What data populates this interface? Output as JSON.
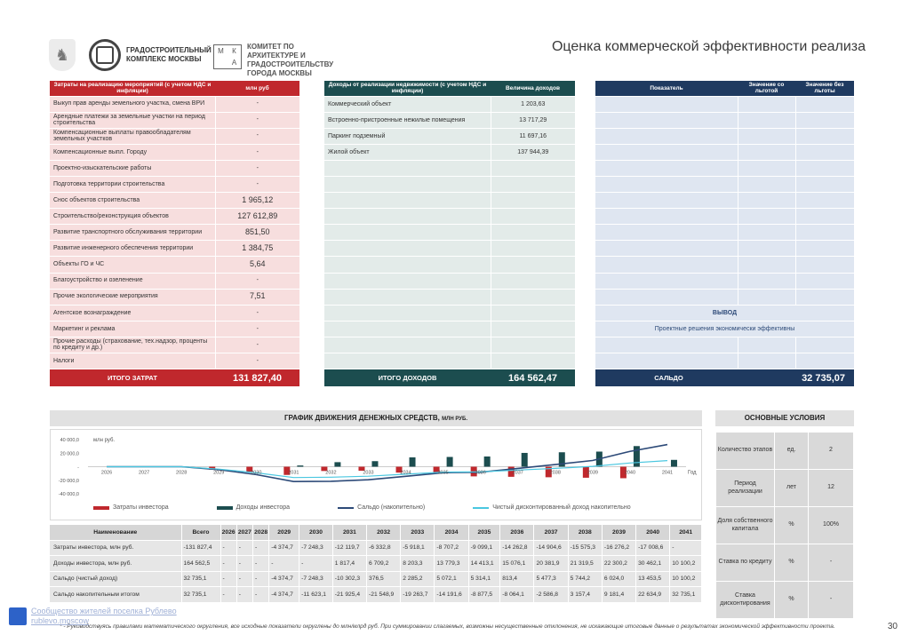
{
  "header": {
    "org1": "ГРАДОСТРОИТЕЛЬНЫЙ КОМПЛЕКС МОСКВЫ",
    "mka": [
      "М",
      "К",
      "",
      "А"
    ],
    "org2": "КОМИТЕТ ПО АРХИТЕКТУРЕ И ГРАДОСТРОИТЕЛЬСТВУ ГОРОДА МОСКВЫ",
    "title": "Оценка коммерческой эффективности реализа"
  },
  "costs": {
    "col1": "Затраты на реализацию мероприятий (с учетом НДС и инфляции)",
    "col2": "млн руб",
    "rows": [
      {
        "label": "Выкуп прав аренды земельного участка, смена ВРИ",
        "value": "-"
      },
      {
        "label": "Арендные платежи за земельные участки на период строительства",
        "value": "-"
      },
      {
        "label": "Компенсационные выплаты правообладателям земельных участков",
        "value": "-"
      },
      {
        "label": "Компенсационные выпл. Городу",
        "value": "-"
      },
      {
        "label": "Проектно-изыскательские работы",
        "value": "-"
      },
      {
        "label": "Подготовка территории строительства",
        "value": "-"
      },
      {
        "label": "Снос объектов строительства",
        "value": "1 965,12"
      },
      {
        "label": "Строительство/реконструкция объектов",
        "value": "127 612,89"
      },
      {
        "label": "Развитие транспортного обслуживания территории",
        "value": "851,50"
      },
      {
        "label": "Развитие инженерного обеспечения территории",
        "value": "1 384,75"
      },
      {
        "label": "Объекты ГО и ЧС",
        "value": "5,64"
      },
      {
        "label": "Благоустройство и озеленение",
        "value": "-"
      },
      {
        "label": "Прочие экологические мероприятия",
        "value": "7,51"
      },
      {
        "label": "Агентское вознаграждение",
        "value": "-"
      },
      {
        "label": "Маркетинг и реклама",
        "value": "-"
      },
      {
        "label": "Прочие расходы (страхование, тех.надзор, проценты по кредиту и др.)",
        "value": "-"
      },
      {
        "label": "Налоги",
        "value": "-"
      }
    ],
    "total_label": "ИТОГО ЗАТРАТ",
    "total_value": "131 827,40"
  },
  "income": {
    "col1": "Доходы от реализации недвижимости (с учетом НДС и инфляции)",
    "col2": "Величина доходов",
    "rows": [
      {
        "label": "Коммерческий объект",
        "value": "1 203,63"
      },
      {
        "label": "Встроенно-пристроенные нежилые помещения",
        "value": "13 717,29"
      },
      {
        "label": "Паркинг подземный",
        "value": "11 697,16"
      },
      {
        "label": "Жилой объект",
        "value": "137 944,39"
      },
      {
        "label": "",
        "value": ""
      },
      {
        "label": "",
        "value": ""
      },
      {
        "label": "",
        "value": ""
      },
      {
        "label": "",
        "value": ""
      },
      {
        "label": "",
        "value": ""
      },
      {
        "label": "",
        "value": ""
      },
      {
        "label": "",
        "value": ""
      },
      {
        "label": "",
        "value": ""
      },
      {
        "label": "",
        "value": ""
      },
      {
        "label": "",
        "value": ""
      },
      {
        "label": "",
        "value": ""
      },
      {
        "label": "",
        "value": ""
      },
      {
        "label": "",
        "value": ""
      }
    ],
    "total_label": "ИТОГО ДОХОДОВ",
    "total_value": "164 562,47"
  },
  "indicators": {
    "col1": "Показатель",
    "col2": "Значение со льготой",
    "col3": "Значение без льготы",
    "conclusion_title": "ВЫВОД",
    "conclusion_text": "Проектные решения экономически эффективны",
    "total_label": "САЛЬДО",
    "total_value": "32 735,07"
  },
  "chart_title": "ГРАФИК ДВИЖЕНИЯ ДЕНЕЖНЫХ СРЕДСТВ,",
  "chart_title_unit": "МЛН РУБ.",
  "chart_data": {
    "type": "bar",
    "ylabel": "млн руб.",
    "xlabel": "Год",
    "ylim": [
      -40000,
      40000
    ],
    "y_ticks": [
      "40 000,0",
      "20 000,0",
      "-",
      "-20 000,0",
      "-40 000,0"
    ],
    "categories": [
      "2026",
      "2027",
      "2028",
      "2029",
      "2030",
      "2031",
      "2032",
      "2033",
      "2034",
      "2035",
      "2036",
      "2037",
      "2038",
      "2039",
      "2040",
      "2041"
    ],
    "x_labels": [
      "2026",
      "2027",
      "2028",
      "2029",
      "2030",
      "2031",
      "2032",
      "2033",
      "2034",
      "2035",
      "2036",
      "2037",
      "2038",
      "2039",
      "2040",
      "2041"
    ],
    "series": [
      {
        "name": "Затраты инвестора",
        "kind": "bar",
        "color": "#c0282d",
        "values": [
          0,
          0,
          0,
          -4374.7,
          -7248.3,
          -12119.7,
          -6332.8,
          -5918.1,
          -8707.2,
          -9099.1,
          -14262.8,
          -14904.6,
          -15575.3,
          -16276.2,
          -17008.6,
          0
        ]
      },
      {
        "name": "Доходы инвестора",
        "kind": "bar",
        "color": "#1c4d4f",
        "values": [
          0,
          0,
          0,
          0,
          0,
          1817.4,
          6709.2,
          8203.3,
          13779.3,
          14413.1,
          15076.1,
          20381.9,
          21319.5,
          22300.2,
          30462.1,
          10100.2
        ]
      },
      {
        "name": "Сальдо (накопительно)",
        "kind": "line",
        "color": "#2d4a78",
        "values": [
          0,
          0,
          0,
          -4374.7,
          -11623.1,
          -21925.4,
          -21548.9,
          -19263.7,
          -14191.6,
          -8877.5,
          -8064.1,
          -2586.8,
          3157.4,
          9181.4,
          22634.9,
          32735.1
        ]
      },
      {
        "name": "Чистый дисконтированный доход накопительно",
        "kind": "line",
        "color": "#4ac7e0",
        "values": [
          0,
          0,
          0,
          -3500,
          -9000,
          -16000,
          -15500,
          -14000,
          -11000,
          -8000,
          -7500,
          -5000,
          -2500,
          500,
          5500,
          9000
        ]
      }
    ]
  },
  "table": {
    "headers": [
      "Наименование",
      "Всего",
      "2026",
      "2027",
      "2028",
      "2029",
      "2030",
      "2031",
      "2032",
      "2033",
      "2034",
      "2035",
      "2036",
      "2037",
      "2038",
      "2039",
      "2040",
      "2041"
    ],
    "rows": [
      [
        "Затраты инвестора, млн руб.",
        "-131 827,4",
        "-",
        "-",
        "-",
        "-4 374,7",
        "-7 248,3",
        "-12 119,7",
        "-6 332,8",
        "-5 918,1",
        "-8 707,2",
        "-9 099,1",
        "-14 262,8",
        "-14 904,6",
        "-15 575,3",
        "-16 276,2",
        "-17 008,6",
        "-"
      ],
      [
        "Доходы инвестора, млн руб.",
        "164 562,5",
        "-",
        "-",
        "-",
        "-",
        "-",
        "1 817,4",
        "6 709,2",
        "8 203,3",
        "13 779,3",
        "14 413,1",
        "15 076,1",
        "20 381,9",
        "21 319,5",
        "22 300,2",
        "30 462,1",
        "10 100,2"
      ],
      [
        "Сальдо (чистый доход)",
        "32 735,1",
        "-",
        "-",
        "-",
        "-4 374,7",
        "-7 248,3",
        "-10 302,3",
        "376,5",
        "2 285,2",
        "5 072,1",
        "5 314,1",
        "813,4",
        "5 477,3",
        "5 744,2",
        "6 024,0",
        "13 453,5",
        "10 100,2"
      ],
      [
        "Сальдо накопительным итогом",
        "32 735,1",
        "-",
        "-",
        "-",
        "-4 374,7",
        "-11 623,1",
        "-21 925,4",
        "-21 548,9",
        "-19 263,7",
        "-14 191,6",
        "-8 877,5",
        "-8 064,1",
        "-2 586,8",
        "3 157,4",
        "9 181,4",
        "22 634,9",
        "32 735,1"
      ]
    ]
  },
  "conditions": {
    "title": "ОСНОВНЫЕ УСЛОВИЯ",
    "rows": [
      {
        "name": "Количество этапов",
        "unit": "ед.",
        "value": "2"
      },
      {
        "name": "Период реализации",
        "unit": "лет",
        "value": "12"
      },
      {
        "name": "Доля собственного капитала",
        "unit": "%",
        "value": "100%"
      },
      {
        "name": "Ставка по кредиту",
        "unit": "%",
        "value": "-"
      },
      {
        "name": "Ставка дисконтирования",
        "unit": "%",
        "value": "-"
      }
    ]
  },
  "footnote": "* - Руководствуясь правилами математического округления, все исходные показатели округлены до млн/млрд руб. При суммировании слагаемых, возможны несущественные отклонения, не искажающие итоговые данные о результатах экономической эффективности проекта.",
  "watermark": [
    "Сообщество жителей поселка Рублево",
    "rublevo.moscow"
  ],
  "page_number": "30"
}
